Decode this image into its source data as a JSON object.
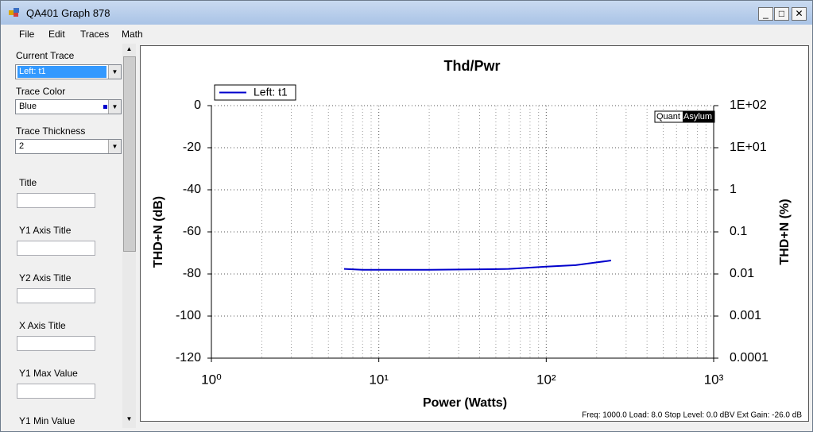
{
  "window": {
    "title": "QA401 Graph 878"
  },
  "menu": [
    "File",
    "Edit",
    "Traces",
    "Math"
  ],
  "panel": {
    "current_trace": {
      "label": "Current Trace",
      "value": "Left: t1"
    },
    "trace_color": {
      "label": "Trace Color",
      "value": "Blue"
    },
    "trace_thickness": {
      "label": "Trace Thickness",
      "value": "2"
    },
    "fields": [
      "Title",
      "Y1 Axis Title",
      "Y2 Axis Title",
      "X Axis Title",
      "Y1 Max Value",
      "Y1 Min Value"
    ]
  },
  "chart_data": {
    "type": "line",
    "title": "Thd/Pwr",
    "xlabel": "Power (Watts)",
    "ylabel": "THD+N (dB)",
    "y2label": "THD+N (%)",
    "x": [
      6.2,
      8,
      20,
      40,
      60,
      80,
      100,
      150,
      200,
      244
    ],
    "series": [
      {
        "name": "Left: t1",
        "color": "#0000cc",
        "values": [
          -77.6,
          -78,
          -78,
          -77.8,
          -77.6,
          -77,
          -76.5,
          -75.8,
          -74.5,
          -73.6
        ]
      }
    ],
    "xlim": [
      1,
      1000
    ],
    "xticks": [
      {
        "value": 1,
        "label": "10⁰"
      },
      {
        "value": 10,
        "label": "10¹"
      },
      {
        "value": 100,
        "label": "10²"
      },
      {
        "value": 1000,
        "label": "10³"
      }
    ],
    "ylim": [
      -120,
      0
    ],
    "yticks": [
      0,
      -20,
      -40,
      -60,
      -80,
      -100,
      -120
    ],
    "y2lim": [
      0.0001,
      100
    ],
    "y2ticks": [
      {
        "value": 100,
        "label": "1E+02"
      },
      {
        "value": 10,
        "label": "1E+01"
      },
      1,
      0.1,
      0.01,
      0.001,
      0.0001
    ],
    "x_log": true,
    "y2_log": true,
    "grid": true,
    "legend": "top-left",
    "watermark": [
      "Quant",
      "Asylum"
    ],
    "footer": "Freq: 1000.0 Load: 8.0 Stop Level: 0.0 dBV  Ext Gain: -26.0 dB"
  }
}
